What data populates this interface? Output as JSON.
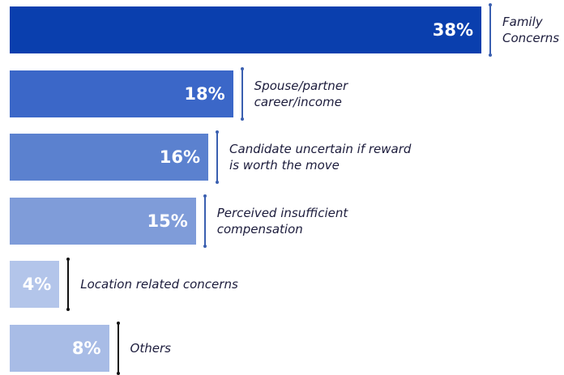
{
  "chart_data": {
    "type": "bar",
    "orientation": "horizontal",
    "categories": [
      "Family Concerns",
      "Spouse/partner career/income",
      "Candidate uncertain if reward is worth the move",
      "Perceived insufficient compensation",
      "Location related concerns",
      "Others"
    ],
    "values": [
      38,
      18,
      16,
      15,
      4,
      8
    ],
    "value_labels": [
      "38%",
      "18%",
      "16%",
      "15%",
      "4%",
      "8%"
    ],
    "colors": [
      "#0a3fae",
      "#3b67c8",
      "#5b81cf",
      "#7f9cd9",
      "#b3c5ea",
      "#a8bce6"
    ],
    "divider_colors": [
      "#3a5fb0",
      "#3a5fb0",
      "#3a5fb0",
      "#3a5fb0",
      "#111111",
      "#111111"
    ]
  }
}
